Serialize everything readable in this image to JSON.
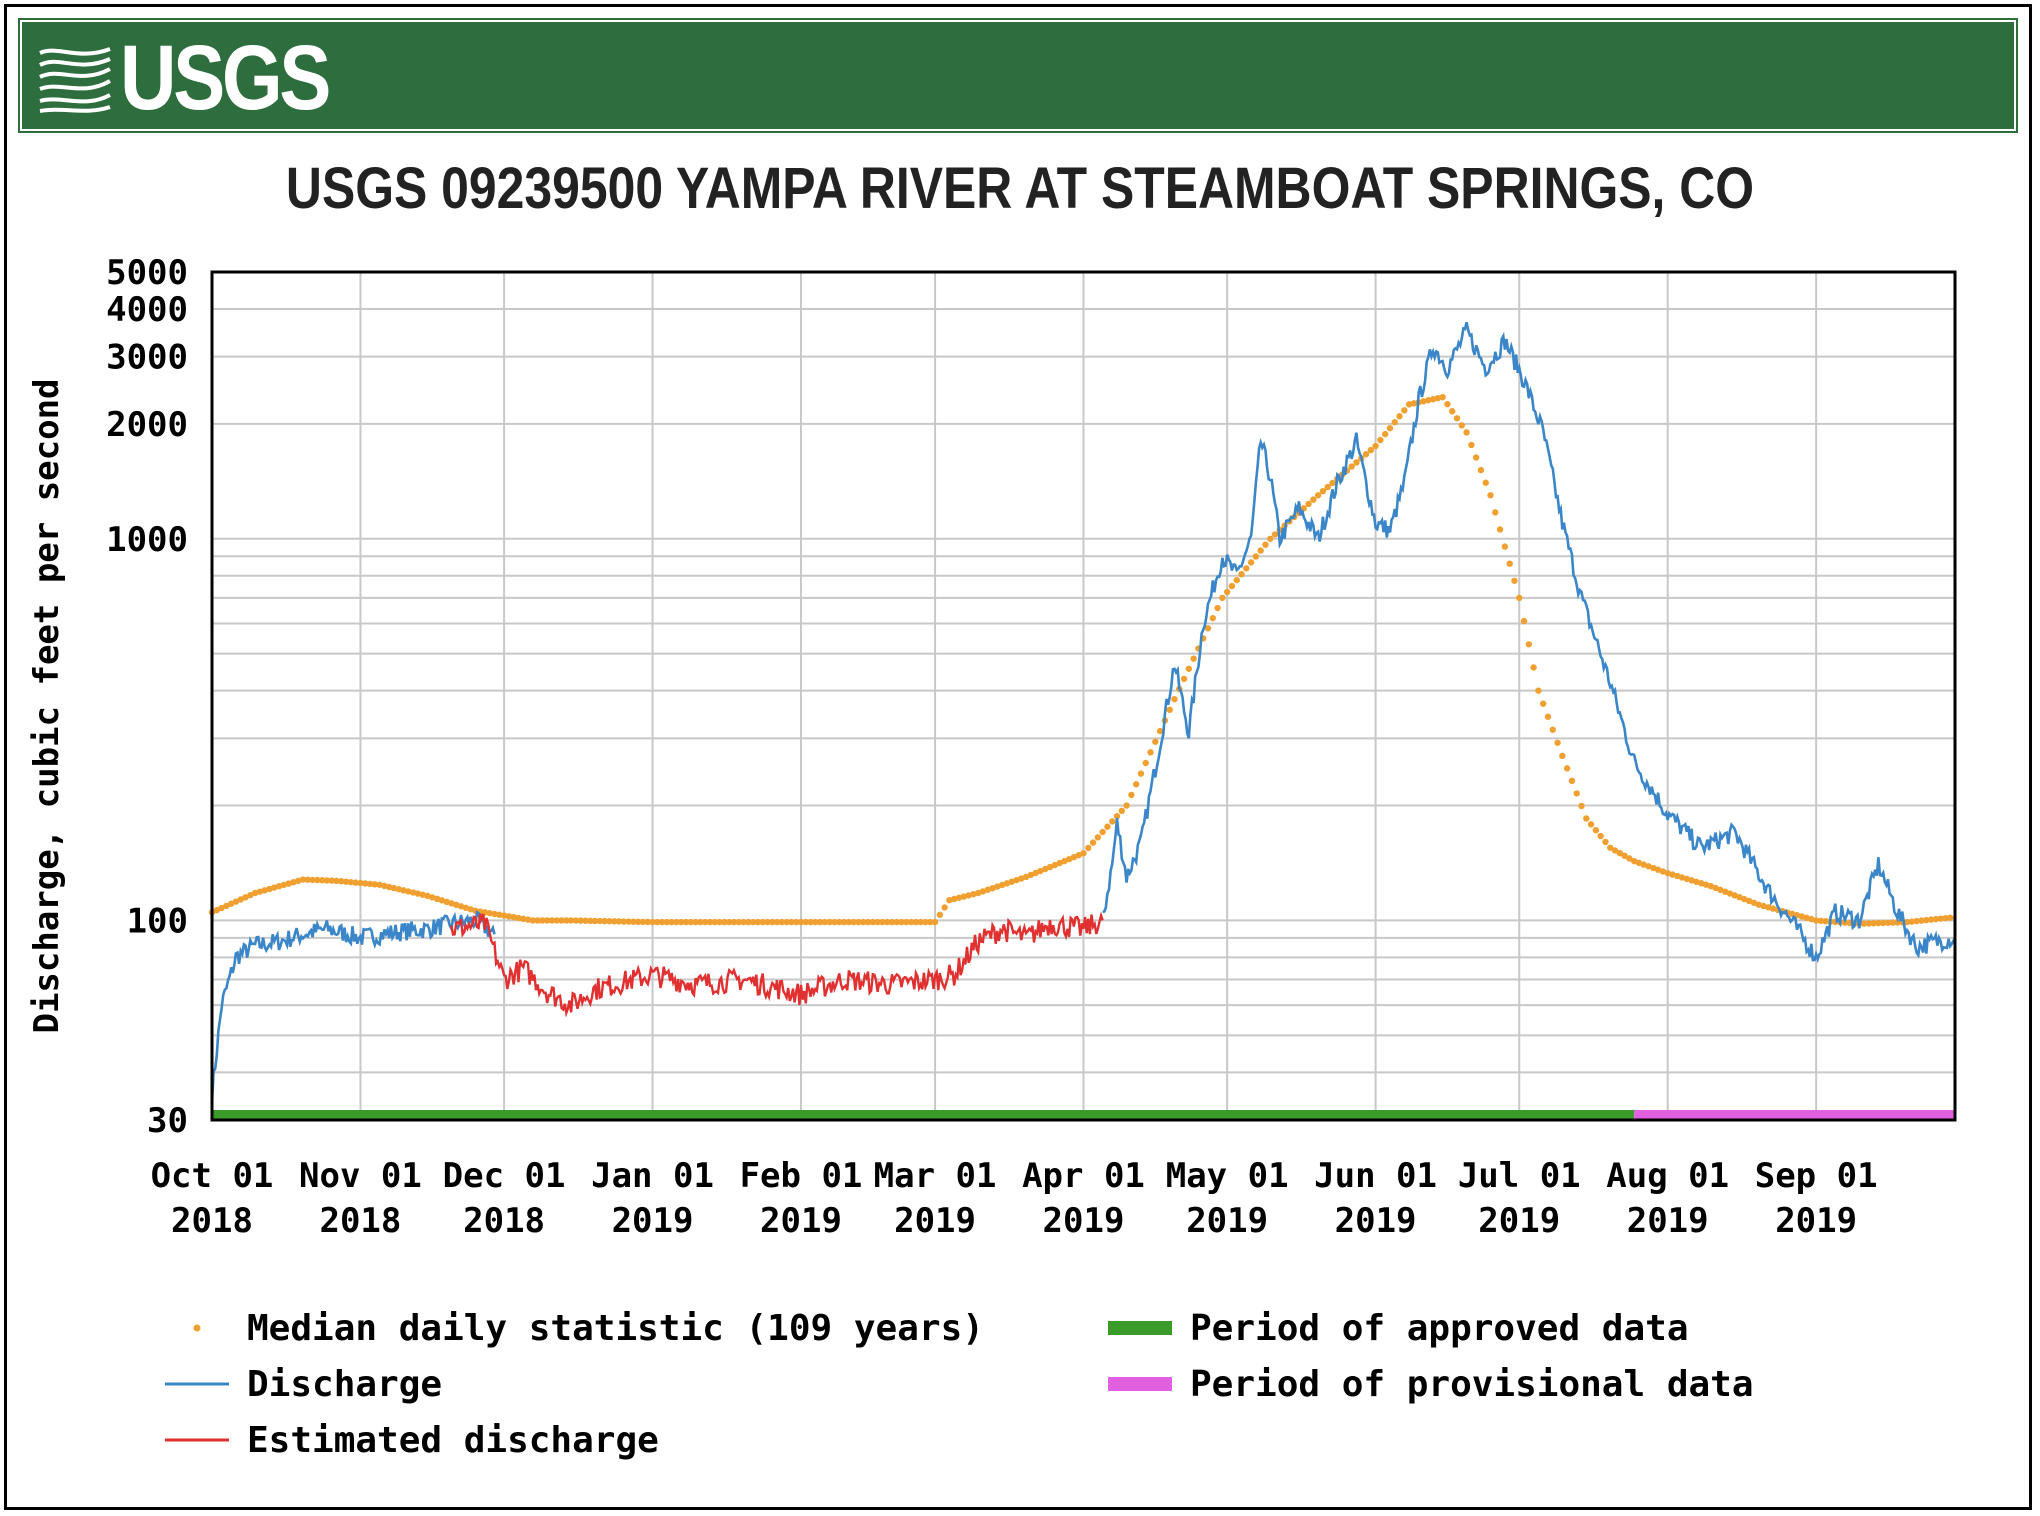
{
  "logo": {
    "text": "USGS",
    "mark": "usgs-wave-icon"
  },
  "chart_data": {
    "type": "line",
    "title": "USGS 09239500 YAMPA RIVER AT STEAMBOAT SPRINGS, CO",
    "ylabel": "Discharge, cubic feet per second",
    "xlabel": "",
    "y_scale": "log",
    "ylim": [
      30,
      5000
    ],
    "xlim": [
      "2018-10-01",
      "2019-09-30"
    ],
    "y_tick_labels": [
      "30",
      "100",
      "1000",
      "2000",
      "3000",
      "4000",
      "5000"
    ],
    "y_ticks": [
      30,
      100,
      1000,
      2000,
      3000,
      4000,
      5000
    ],
    "x_ticks": [
      {
        "date": "2018-10-01",
        "line1": "Oct 01",
        "line2": "2018"
      },
      {
        "date": "2018-11-01",
        "line1": "Nov 01",
        "line2": "2018"
      },
      {
        "date": "2018-12-01",
        "line1": "Dec 01",
        "line2": "2018"
      },
      {
        "date": "2019-01-01",
        "line1": "Jan 01",
        "line2": "2019"
      },
      {
        "date": "2019-02-01",
        "line1": "Feb 01",
        "line2": "2019"
      },
      {
        "date": "2019-03-01",
        "line1": "Mar 01",
        "line2": "2019"
      },
      {
        "date": "2019-04-01",
        "line1": "Apr 01",
        "line2": "2019"
      },
      {
        "date": "2019-05-01",
        "line1": "May 01",
        "line2": "2019"
      },
      {
        "date": "2019-06-01",
        "line1": "Jun 01",
        "line2": "2019"
      },
      {
        "date": "2019-07-01",
        "line1": "Jul 01",
        "line2": "2019"
      },
      {
        "date": "2019-08-01",
        "line1": "Aug 01",
        "line2": "2019"
      },
      {
        "date": "2019-09-01",
        "line1": "Sep 01",
        "line2": "2019"
      }
    ],
    "grid": true,
    "legend_position": "bottom",
    "colors": {
      "median": "#f0a030",
      "discharge": "#3a86c8",
      "estimated": "#e03030",
      "approved": "#3a9a2a",
      "provisional": "#e060e0",
      "grid": "#c8c8c8"
    },
    "series": [
      {
        "name": "Median daily statistic (109 years)",
        "kind": "points",
        "x": [
          "2018-10-01",
          "2018-10-10",
          "2018-10-20",
          "2018-10-27",
          "2018-11-05",
          "2018-11-15",
          "2018-11-25",
          "2018-12-01",
          "2018-12-07",
          "2018-12-15",
          "2019-01-01",
          "2019-01-15",
          "2019-02-01",
          "2019-02-15",
          "2019-03-01",
          "2019-03-04",
          "2019-03-10",
          "2019-03-20",
          "2019-04-01",
          "2019-04-10",
          "2019-04-20",
          "2019-04-30",
          "2019-05-10",
          "2019-05-20",
          "2019-06-01",
          "2019-06-08",
          "2019-06-15",
          "2019-06-20",
          "2019-06-25",
          "2019-07-01",
          "2019-07-05",
          "2019-07-10",
          "2019-07-15",
          "2019-07-20",
          "2019-07-25",
          "2019-08-01",
          "2019-08-10",
          "2019-08-20",
          "2019-09-01",
          "2019-09-10",
          "2019-09-20",
          "2019-09-30"
        ],
        "y": [
          105,
          118,
          128,
          127,
          124,
          116,
          106,
          103,
          100,
          100,
          99,
          99,
          99,
          99,
          99,
          113,
          118,
          130,
          150,
          200,
          380,
          700,
          1000,
          1300,
          1750,
          2250,
          2350,
          1900,
          1300,
          700,
          400,
          270,
          185,
          155,
          143,
          133,
          123,
          110,
          100,
          98,
          99,
          102
        ]
      },
      {
        "name": "Discharge",
        "kind": "line",
        "segments": [
          {
            "x": [
              "2018-10-01",
              "2018-10-03",
              "2018-10-06",
              "2018-10-10",
              "2018-10-15",
              "2018-10-20",
              "2018-10-25",
              "2018-11-01",
              "2018-11-08",
              "2018-11-15",
              "2018-11-20",
              "2018-11-25",
              "2018-11-29"
            ],
            "y": [
              35,
              60,
              80,
              86,
              88,
              92,
              95,
              90,
              93,
              95,
              98,
              100,
              92
            ]
          },
          {
            "x": [
              "2019-04-05",
              "2019-04-07",
              "2019-04-08",
              "2019-04-10",
              "2019-04-13",
              "2019-04-16",
              "2019-04-20",
              "2019-04-23",
              "2019-04-26",
              "2019-04-30",
              "2019-05-03",
              "2019-05-06",
              "2019-05-08",
              "2019-05-10",
              "2019-05-12",
              "2019-05-16",
              "2019-05-20",
              "2019-05-24",
              "2019-05-28",
              "2019-06-01",
              "2019-06-04",
              "2019-06-07",
              "2019-06-10",
              "2019-06-13",
              "2019-06-16",
              "2019-06-20",
              "2019-06-24",
              "2019-06-28",
              "2019-07-02",
              "2019-07-06",
              "2019-07-10",
              "2019-07-14",
              "2019-07-20",
              "2019-07-25",
              "2019-08-01",
              "2019-08-08",
              "2019-08-15",
              "2019-08-22",
              "2019-08-28",
              "2019-09-01",
              "2019-09-05",
              "2019-09-10",
              "2019-09-14",
              "2019-09-18",
              "2019-09-22",
              "2019-09-26",
              "2019-09-30"
            ],
            "y": [
              100,
              140,
              180,
              130,
              160,
              250,
              470,
              310,
              600,
              900,
              800,
              1000,
              1800,
              1450,
              1000,
              1200,
              1000,
              1400,
              1800,
              1100,
              1050,
              1400,
              2300,
              3200,
              2800,
              3500,
              2800,
              3300,
              2600,
              1900,
              1100,
              700,
              420,
              260,
              190,
              155,
              170,
              120,
              95,
              80,
              105,
              100,
              140,
              105,
              85,
              88,
              90
            ]
          }
        ]
      },
      {
        "name": "Estimated discharge",
        "kind": "line",
        "x": [
          "2018-11-20",
          "2018-11-27",
          "2018-12-01",
          "2018-12-05",
          "2018-12-10",
          "2018-12-15",
          "2018-12-20",
          "2019-01-01",
          "2019-01-10",
          "2019-01-20",
          "2019-02-01",
          "2019-02-10",
          "2019-02-20",
          "2019-03-01",
          "2019-03-05",
          "2019-03-10",
          "2019-03-15",
          "2019-03-20",
          "2019-03-25",
          "2019-04-01",
          "2019-04-05"
        ],
        "y": [
          95,
          98,
          70,
          75,
          65,
          60,
          66,
          72,
          68,
          70,
          64,
          70,
          68,
          70,
          72,
          88,
          95,
          90,
          98,
          95,
          100
        ]
      }
    ],
    "periods": [
      {
        "name": "Period of approved data",
        "start": "2018-10-01",
        "end": "2019-07-25"
      },
      {
        "name": "Period of provisional data",
        "start": "2019-07-25",
        "end": "2019-09-30"
      }
    ]
  }
}
